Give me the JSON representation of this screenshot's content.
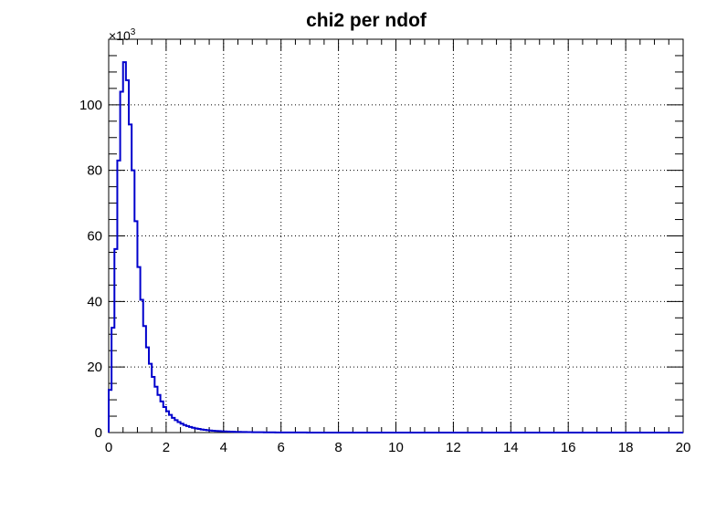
{
  "chart_data": {
    "type": "histogram",
    "title": "chi2 per ndof",
    "xlabel": "",
    "ylabel": "",
    "xlim": [
      0,
      20
    ],
    "ylim": [
      0,
      120000
    ],
    "x_ticks": [
      "0",
      "2",
      "4",
      "6",
      "8",
      "10",
      "12",
      "14",
      "16",
      "18",
      "20"
    ],
    "y_ticks": [
      "0",
      "20",
      "40",
      "60",
      "80",
      "100"
    ],
    "y_multiplier": "×10",
    "y_multiplier_exp": "3",
    "grid": true,
    "line_color": "#0000cc",
    "bin_width": 0.1,
    "bin_edges_start": 0,
    "values": [
      13000,
      32000,
      56000,
      83000,
      104000,
      113000,
      107500,
      94000,
      80000,
      64500,
      50500,
      40500,
      32500,
      26000,
      21000,
      17000,
      14000,
      11500,
      9500,
      7800,
      6500,
      5400,
      4500,
      3800,
      3200,
      2700,
      2300,
      2000,
      1700,
      1450,
      1250,
      1100,
      950,
      830,
      720,
      630,
      560,
      500,
      440,
      390,
      350,
      310,
      280,
      250,
      225,
      200,
      180,
      165,
      150,
      135,
      120,
      110,
      100,
      90,
      80,
      72,
      65,
      58,
      52,
      47,
      42,
      38,
      34,
      31,
      28,
      25,
      22,
      20,
      18,
      16,
      14,
      13,
      12,
      11,
      10,
      9,
      8,
      7,
      6,
      5
    ]
  }
}
